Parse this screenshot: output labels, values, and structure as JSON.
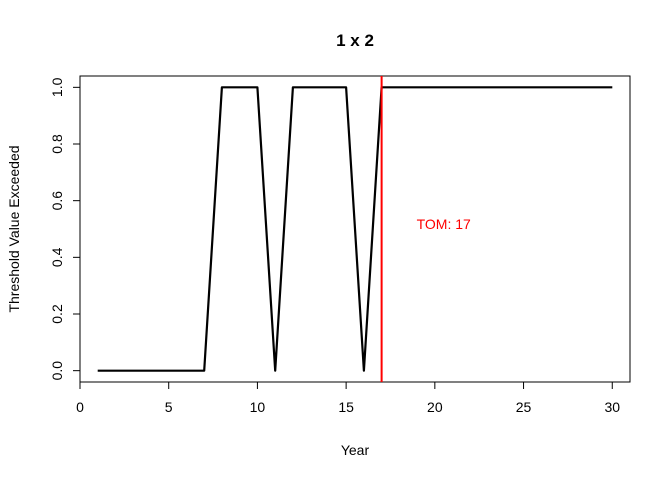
{
  "chart_data": {
    "type": "line",
    "title": "1 x 2",
    "xlabel": "Year",
    "ylabel": "Threshold Value Exceeded",
    "xlim": [
      0,
      31
    ],
    "ylim": [
      -0.04,
      1.04
    ],
    "xticks": [
      0,
      5,
      10,
      15,
      20,
      25,
      30
    ],
    "xtick_labels": [
      "0",
      "5",
      "10",
      "15",
      "20",
      "25",
      "30"
    ],
    "yticks": [
      0.0,
      0.2,
      0.4,
      0.6,
      0.8,
      1.0
    ],
    "ytick_labels": [
      "0.0",
      "0.2",
      "0.4",
      "0.6",
      "0.8",
      "1.0"
    ],
    "grid": false,
    "series": [
      {
        "color": "#000000",
        "x": [
          1,
          2,
          3,
          4,
          5,
          6,
          7,
          8,
          9,
          10,
          11,
          12,
          13,
          14,
          15,
          16,
          17,
          18,
          19,
          20,
          21,
          22,
          23,
          24,
          25,
          26,
          27,
          28,
          29,
          30
        ],
        "y": [
          0,
          0,
          0,
          0,
          0,
          0,
          0,
          1,
          1,
          1,
          0,
          1,
          1,
          1,
          1,
          0,
          1,
          1,
          1,
          1,
          1,
          1,
          1,
          1,
          1,
          1,
          1,
          1,
          1,
          1
        ]
      }
    ],
    "vline": {
      "x": 17,
      "color": "#ff0000"
    },
    "annotation": {
      "text": "TOM: 17",
      "x": 20.5,
      "y": 0.5,
      "color": "#ff0000"
    }
  }
}
